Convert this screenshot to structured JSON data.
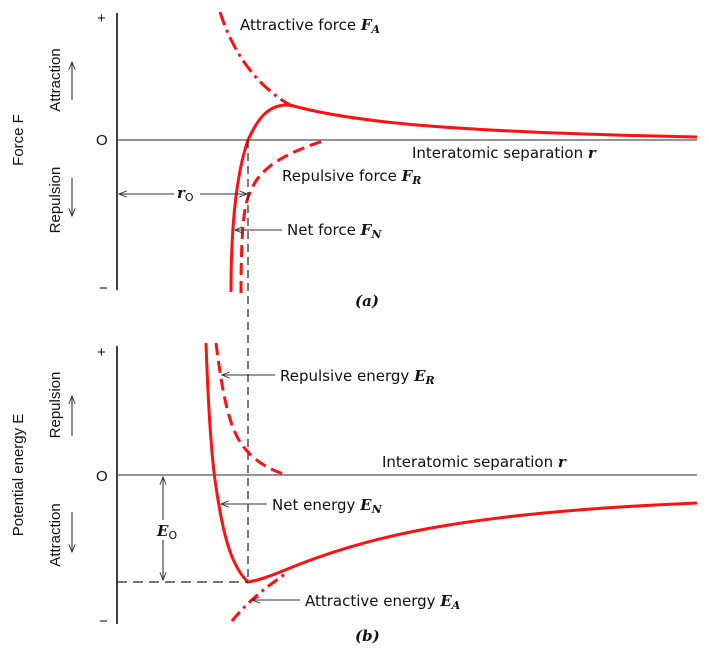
{
  "panel_a": {
    "y_axis_label": "Force F",
    "plus": "+",
    "zero": "O",
    "minus": "−",
    "up_label": "Attraction",
    "down_label": "Repulsion",
    "x_axis_label": "Interatomic separation",
    "x_axis_symbol": "r",
    "attractive": {
      "text": "Attractive force",
      "symbol": "F",
      "sub": "A"
    },
    "repulsive": {
      "text": "Repulsive force",
      "symbol": "F",
      "sub": "R"
    },
    "net": {
      "text": "Net force",
      "symbol": "F",
      "sub": "N"
    },
    "r0": {
      "symbol": "r",
      "sub": "O"
    },
    "caption": "(a)"
  },
  "panel_b": {
    "y_axis_label": "Potential energy E",
    "plus": "+",
    "zero": "O",
    "minus": "−",
    "up_label": "Repulsion",
    "down_label": "Attraction",
    "x_axis_label": "Interatomic separation",
    "x_axis_symbol": "r",
    "repulsive": {
      "text": "Repulsive energy",
      "symbol": "E",
      "sub": "R"
    },
    "net": {
      "text": "Net energy",
      "symbol": "E",
      "sub": "N"
    },
    "attractive": {
      "text": "Attractive energy",
      "symbol": "E",
      "sub": "A"
    },
    "e0": {
      "symbol": "E",
      "sub": "O"
    },
    "caption": "(b)"
  },
  "colors": {
    "curve": "#ff1010",
    "axis": "#111111"
  }
}
